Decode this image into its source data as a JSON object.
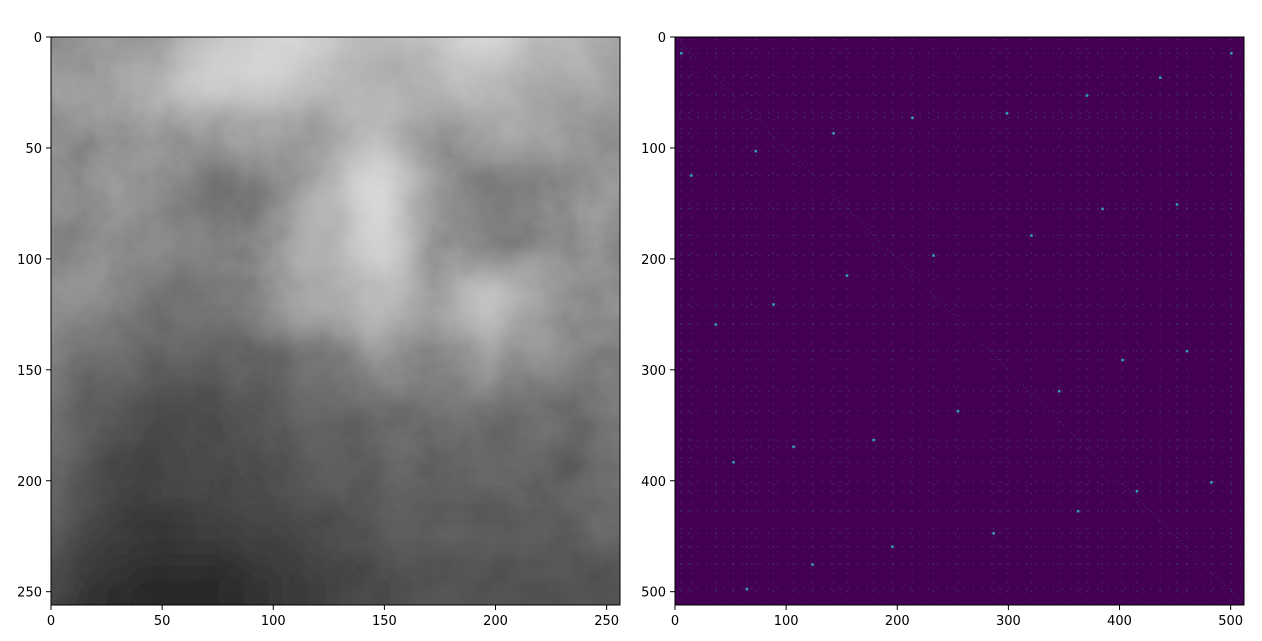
{
  "chart_data": [
    {
      "type": "heatmap",
      "colormap": "gray",
      "title": "",
      "xlabel": "",
      "ylabel": "",
      "xlim": [
        0,
        256
      ],
      "ylim": [
        256,
        0
      ],
      "x_ticks": [
        0,
        50,
        100,
        150,
        200,
        250
      ],
      "y_ticks": [
        0,
        50,
        100,
        150,
        200,
        250
      ],
      "x_tick_labels": [
        "0",
        "50",
        "100",
        "150",
        "200",
        "250"
      ],
      "y_tick_labels": [
        "0",
        "50",
        "100",
        "150",
        "200",
        "250"
      ],
      "content": "grayscale cloud image, bright patches upper center-right, dark cloud mass lower-left",
      "brightness_grid": [
        [
          0.45,
          0.5,
          0.4,
          0.7,
          0.82,
          0.78,
          0.65,
          0.75,
          0.82,
          0.7,
          0.6
        ],
        [
          0.5,
          0.55,
          0.62,
          0.78,
          0.8,
          0.7,
          0.62,
          0.68,
          0.72,
          0.62,
          0.55
        ],
        [
          0.48,
          0.52,
          0.55,
          0.48,
          0.55,
          0.58,
          0.7,
          0.5,
          0.55,
          0.52,
          0.5
        ],
        [
          0.46,
          0.5,
          0.48,
          0.38,
          0.42,
          0.6,
          0.85,
          0.45,
          0.42,
          0.45,
          0.5
        ],
        [
          0.45,
          0.5,
          0.46,
          0.42,
          0.5,
          0.62,
          0.8,
          0.52,
          0.42,
          0.48,
          0.48
        ],
        [
          0.48,
          0.45,
          0.4,
          0.38,
          0.48,
          0.55,
          0.7,
          0.55,
          0.75,
          0.55,
          0.48
        ],
        [
          0.44,
          0.38,
          0.32,
          0.3,
          0.35,
          0.38,
          0.48,
          0.45,
          0.5,
          0.45,
          0.44
        ],
        [
          0.4,
          0.3,
          0.24,
          0.26,
          0.28,
          0.33,
          0.38,
          0.38,
          0.36,
          0.36,
          0.4
        ],
        [
          0.38,
          0.26,
          0.23,
          0.25,
          0.28,
          0.3,
          0.33,
          0.32,
          0.32,
          0.33,
          0.38
        ],
        [
          0.33,
          0.22,
          0.2,
          0.2,
          0.22,
          0.25,
          0.3,
          0.3,
          0.3,
          0.3,
          0.33
        ],
        [
          0.25,
          0.16,
          0.13,
          0.14,
          0.17,
          0.22,
          0.26,
          0.28,
          0.28,
          0.28,
          0.28
        ]
      ]
    },
    {
      "type": "heatmap",
      "colormap": "viridis",
      "title": "",
      "xlabel": "",
      "ylabel": "",
      "xlim": [
        0,
        512
      ],
      "ylim": [
        512,
        0
      ],
      "x_ticks": [
        0,
        100,
        200,
        300,
        400,
        500
      ],
      "y_ticks": [
        0,
        100,
        200,
        300,
        400,
        500
      ],
      "x_tick_labels": [
        "0",
        "100",
        "200",
        "300",
        "400",
        "500"
      ],
      "y_tick_labels": [
        "0",
        "100",
        "200",
        "300",
        "400",
        "500"
      ],
      "content": "sparse matrix, near-zero everywhere with faint grid of small bright values",
      "background_color": "#440154",
      "highlight_color": "#3b528b",
      "diagonal": true,
      "bright_columns": [
        5,
        14,
        36,
        52,
        64,
        72,
        88,
        106,
        123,
        142,
        154,
        178,
        195,
        213,
        232,
        254,
        286,
        298,
        320,
        345,
        362,
        370,
        384,
        402,
        415,
        436,
        451,
        460,
        482,
        500
      ],
      "bright_rows": [
        14,
        36,
        52,
        68,
        72,
        86,
        102,
        124,
        150,
        154,
        178,
        196,
        214,
        240,
        258,
        282,
        290,
        318,
        336,
        362,
        368,
        382,
        400,
        408,
        426,
        446,
        458,
        474,
        496
      ]
    }
  ]
}
